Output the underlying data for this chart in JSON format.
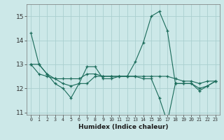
{
  "xlabel": "Humidex (Indice chaleur)",
  "x": [
    0,
    1,
    2,
    3,
    4,
    5,
    6,
    7,
    8,
    9,
    10,
    11,
    12,
    13,
    14,
    15,
    16,
    17,
    18,
    19,
    20,
    21,
    22,
    23
  ],
  "line1": [
    14.3,
    13.0,
    12.6,
    12.2,
    12.0,
    11.6,
    12.2,
    12.9,
    12.9,
    12.4,
    12.4,
    12.5,
    12.5,
    13.1,
    13.9,
    15.0,
    15.2,
    14.4,
    12.2,
    12.2,
    12.2,
    12.0,
    12.1,
    12.3
  ],
  "line2": [
    13.0,
    13.0,
    12.6,
    12.4,
    12.4,
    12.4,
    12.4,
    12.6,
    12.6,
    12.5,
    12.5,
    12.5,
    12.5,
    12.5,
    12.5,
    12.5,
    12.5,
    12.5,
    12.4,
    12.3,
    12.3,
    12.2,
    12.3,
    12.3
  ],
  "line3": [
    13.0,
    12.6,
    12.5,
    12.4,
    12.2,
    12.1,
    12.2,
    12.2,
    12.5,
    12.5,
    12.5,
    12.5,
    12.5,
    12.5,
    12.4,
    12.4,
    11.6,
    10.6,
    12.2,
    12.2,
    12.2,
    11.9,
    12.1,
    12.3
  ],
  "bg_color": "#cce8e8",
  "line_color": "#1a6b5a",
  "grid_color": "#aacfcf",
  "ylim": [
    10.9,
    15.5
  ],
  "yticks": [
    11,
    12,
    13,
    14,
    15
  ],
  "xticks": [
    0,
    1,
    2,
    3,
    4,
    5,
    6,
    7,
    8,
    9,
    10,
    11,
    12,
    13,
    14,
    15,
    16,
    17,
    18,
    19,
    20,
    21,
    22,
    23
  ]
}
